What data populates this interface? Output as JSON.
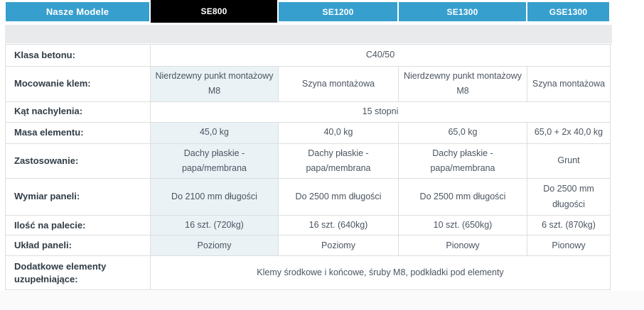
{
  "colors": {
    "accent_blue": "#379fce",
    "selected_tab_black": "#000000",
    "spacer_gray": "#e9eaec",
    "se800_column_tint": "#eaf2f6",
    "border_gray": "#dbdee0"
  },
  "table": {
    "header": {
      "label": "Nasze Modele",
      "models": [
        {
          "label": "SE800",
          "selected": true
        },
        {
          "label": "SE1200",
          "selected": false
        },
        {
          "label": "SE1300",
          "selected": false
        },
        {
          "label": "GSE1300",
          "selected": false
        }
      ]
    },
    "rows": [
      {
        "label": "Klasa betonu:",
        "span": "C40/50"
      },
      {
        "label": "Mocowanie klem:",
        "values": [
          "Nierdzewny punkt montażowy M8",
          "Szyna montażowa",
          "Nierdzewny punkt montażowy M8",
          "Szyna montażowa"
        ]
      },
      {
        "label": "Kąt nachylenia:",
        "span": "15 stopni"
      },
      {
        "label": "Masa elementu:",
        "values": [
          "45,0 kg",
          "40,0 kg",
          "65,0 kg",
          "65,0 + 2x 40,0 kg"
        ]
      },
      {
        "label": "Zastosowanie:",
        "values": [
          "Dachy płaskie - papa/membrana",
          "Dachy płaskie - papa/membrana",
          "Dachy płaskie - papa/membrana",
          "Grunt"
        ]
      },
      {
        "label": "Wymiar paneli:",
        "values": [
          "Do 2100 mm długości",
          "Do 2500 mm długości",
          "Do 2500 mm długości",
          "Do 2500 mm długości"
        ]
      },
      {
        "label": "Ilość na palecie:",
        "values": [
          "16 szt. (720kg)",
          "16 szt. (640kg)",
          "10 szt. (650kg)",
          "6 szt. (870kg)"
        ]
      },
      {
        "label": "Układ paneli:",
        "values": [
          "Poziomy",
          "Poziomy",
          "Pionowy",
          "Pionowy"
        ]
      },
      {
        "label": "Dodatkowe elementy uzupełniające:",
        "span": "Klemy środkowe i końcowe, śruby M8, podkładki pod elementy"
      }
    ]
  }
}
